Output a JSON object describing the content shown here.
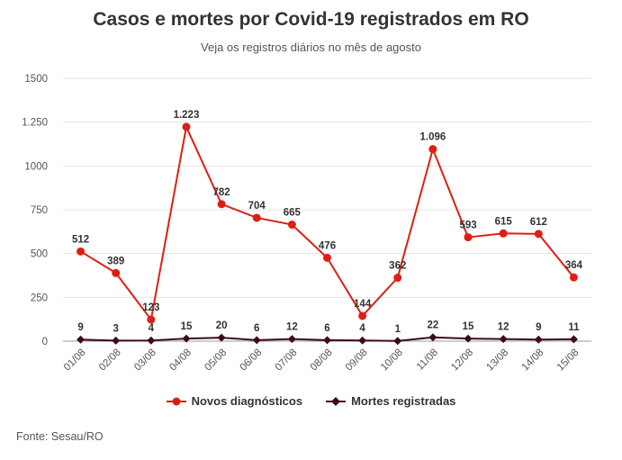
{
  "title": "Casos e mortes por Covid-19 registrados em RO",
  "subtitle": "Veja os registros diários no mês de agosto",
  "source": "Fonte: Sesau/RO",
  "chart_data": {
    "type": "line",
    "categories": [
      "01/08",
      "02/08",
      "03/08",
      "04/08",
      "05/08",
      "06/08",
      "07/08",
      "08/08",
      "09/08",
      "10/08",
      "11/08",
      "12/08",
      "13/08",
      "14/08",
      "15/08"
    ],
    "ylim": [
      0,
      1500
    ],
    "yticks": [
      0,
      250,
      500,
      750,
      1000,
      1250,
      1500
    ],
    "ytick_labels": [
      "0",
      "250",
      "500",
      "750",
      "1000",
      "1.250",
      "1500"
    ],
    "grid": true,
    "legend_position": "bottom",
    "series": [
      {
        "name": "Novos diagnósticos",
        "color": "#dd1f13",
        "marker": "circle",
        "values": [
          512,
          389,
          123,
          1223,
          782,
          704,
          665,
          476,
          144,
          362,
          1096,
          593,
          615,
          612,
          364
        ],
        "labels": [
          "512",
          "389",
          "123",
          "1.223",
          "782",
          "704",
          "665",
          "476",
          "144",
          "362",
          "1.096",
          "593",
          "615",
          "612",
          "364"
        ]
      },
      {
        "name": "Mortes registradas",
        "color": "#3d0a1a",
        "marker": "diamond",
        "values": [
          9,
          3,
          4,
          15,
          20,
          6,
          12,
          6,
          4,
          1,
          22,
          15,
          12,
          9,
          11
        ],
        "labels": [
          "9",
          "3",
          "4",
          "15",
          "20",
          "6",
          "12",
          "6",
          "4",
          "1",
          "22",
          "15",
          "12",
          "9",
          "11"
        ]
      }
    ]
  }
}
